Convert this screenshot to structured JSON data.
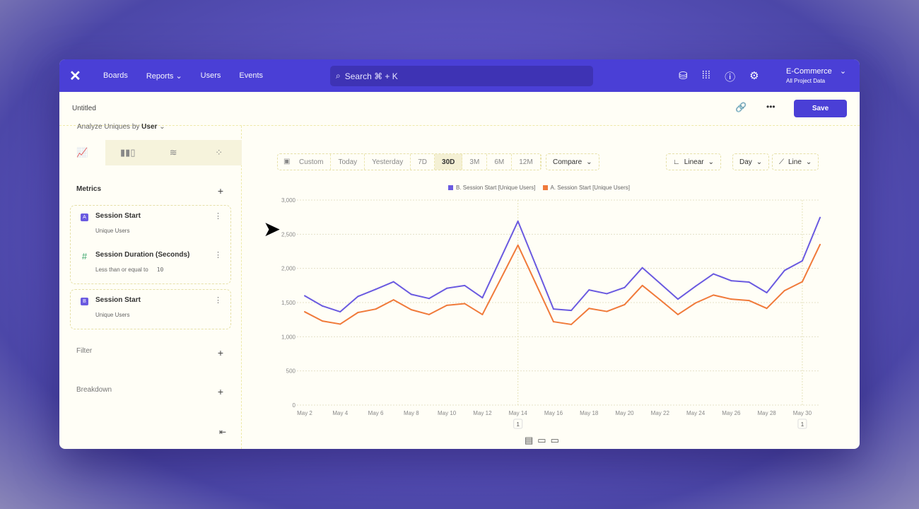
{
  "nav": {
    "items": [
      "Boards",
      "Reports",
      "Users",
      "Events"
    ],
    "search": "Search  ⌘ + K",
    "project": "E-Commerce",
    "project_sub": "All Project Data",
    "brand_color": "#4a3fd6"
  },
  "subheader": {
    "title": "Untitled",
    "save": "Save"
  },
  "sidebar": {
    "analyze_label": "Analyze Uniques by",
    "analyze_value": "User",
    "metrics_title": "Metrics",
    "metrics": [
      {
        "badge": "A",
        "title": "Session Start",
        "sub": "Unique Users"
      },
      {
        "badge": "#",
        "title": "Session Duration (Seconds)",
        "sub": "Less than or equal to",
        "value": "10"
      },
      {
        "badge": "B",
        "title": "Session Start",
        "sub": "Unique Users"
      }
    ],
    "filter": "Filter",
    "breakdown": "Breakdown"
  },
  "toolbar": {
    "ranges": [
      "Custom",
      "Today",
      "Yesterday",
      "7D",
      "30D",
      "3M",
      "6M",
      "12M"
    ],
    "selected": "30D",
    "compare": "Compare",
    "scale": "Linear",
    "interval": "Day",
    "chart_type": "Line"
  },
  "chart_data": {
    "type": "line",
    "ylim": [
      0,
      3000
    ],
    "yticks": [
      "0",
      "500",
      "1,000",
      "1,500",
      "2,000",
      "2,500",
      "3,000"
    ],
    "xticks": [
      "May 2",
      "May 4",
      "May 6",
      "May 8",
      "May 10",
      "May 12",
      "May 14",
      "May 16",
      "May 18",
      "May 20",
      "May 22",
      "May 24",
      "May 26",
      "May 28",
      "May 30"
    ],
    "x": [
      "May 2",
      "May 3",
      "May 4",
      "May 5",
      "May 6",
      "May 7",
      "May 8",
      "May 9",
      "May 10",
      "May 11",
      "May 12",
      "May 13",
      "May 14",
      "May 15",
      "May 16",
      "May 17",
      "May 18",
      "May 19",
      "May 20",
      "May 21",
      "May 22",
      "May 23",
      "May 24",
      "May 25",
      "May 26",
      "May 27",
      "May 28",
      "May 29",
      "May 30",
      "May 31"
    ],
    "series": [
      {
        "name": "B. Session Start [Unique Users]",
        "color": "#6a5ae0",
        "values": [
          1600,
          1450,
          1365,
          1590,
          1695,
          1805,
          1620,
          1560,
          1710,
          1750,
          1570,
          2130,
          2690,
          2050,
          1405,
          1385,
          1685,
          1630,
          1720,
          2010,
          1780,
          1550,
          1740,
          1920,
          1820,
          1800,
          1645,
          1970,
          2110,
          2745
        ]
      },
      {
        "name": "A. Session Start [Unique Users]",
        "color": "#f07a3a",
        "values": [
          1365,
          1230,
          1185,
          1355,
          1405,
          1540,
          1395,
          1325,
          1460,
          1485,
          1325,
          1830,
          2340,
          1780,
          1220,
          1180,
          1415,
          1370,
          1470,
          1750,
          1540,
          1325,
          1495,
          1610,
          1550,
          1530,
          1415,
          1675,
          1805,
          2350
        ]
      }
    ],
    "annotations": [
      {
        "x": "May 14",
        "label": "1"
      },
      {
        "x": "May 30",
        "label": "1"
      }
    ],
    "grid": true,
    "legend": "top-center"
  }
}
